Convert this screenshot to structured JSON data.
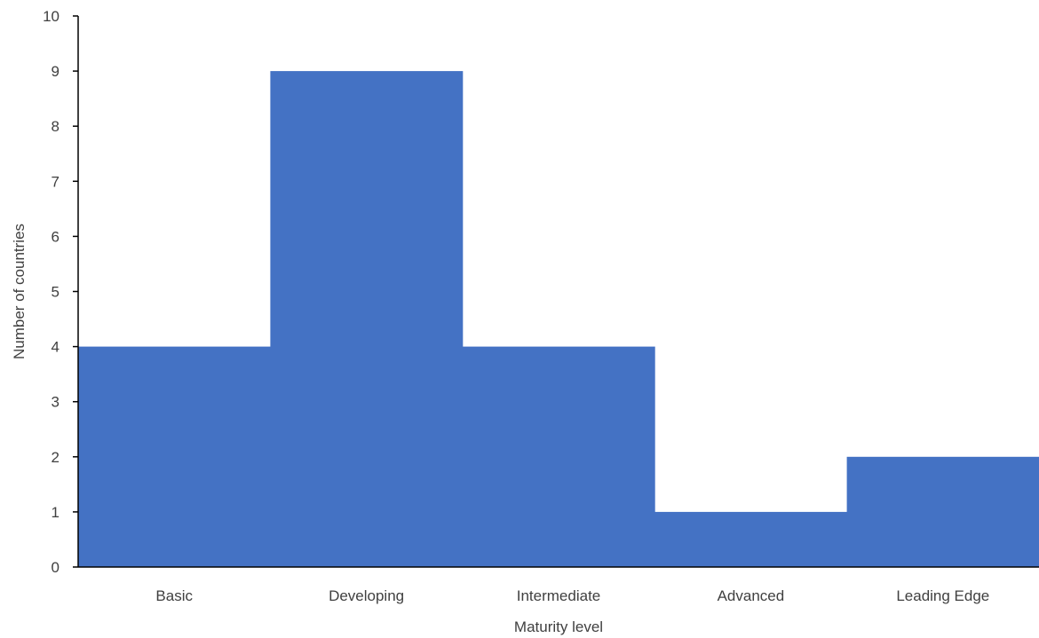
{
  "chart_data": {
    "type": "bar",
    "title": "",
    "xlabel": "Maturity level",
    "ylabel": "Number of countries",
    "categories": [
      "Basic",
      "Developing",
      "Intermediate",
      "Advanced",
      "Leading Edge"
    ],
    "values": [
      4,
      9,
      4,
      1,
      2
    ],
    "ylim": [
      0,
      10
    ],
    "yticks": [
      "0",
      "1",
      "2",
      "3",
      "4",
      "5",
      "6",
      "7",
      "8",
      "9",
      "10"
    ],
    "grid": false,
    "legend": "none",
    "bar_gap": "none",
    "colors": {
      "bar": "#4472C4",
      "axis": "#000000",
      "text": "#404040"
    }
  }
}
